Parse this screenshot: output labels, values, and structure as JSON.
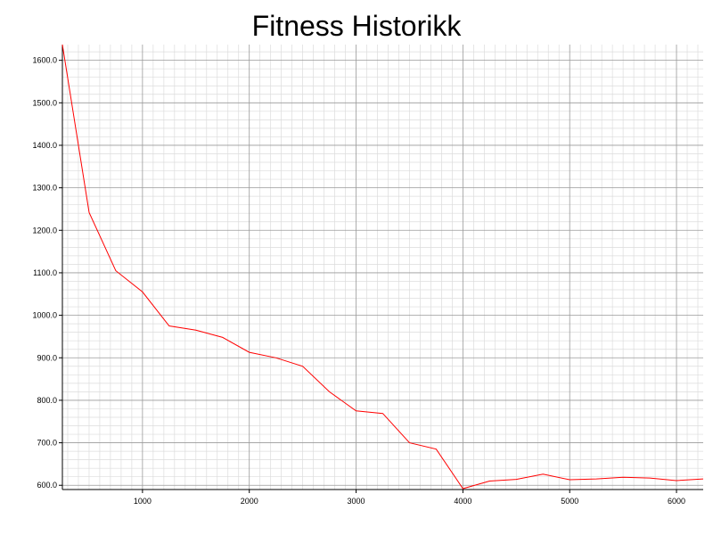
{
  "chart_data": {
    "type": "line",
    "title": "Fitness Historikk",
    "xlabel": "",
    "ylabel": "",
    "xlim": [
      250,
      6250
    ],
    "ylim": [
      590,
      1637
    ],
    "grid": true,
    "x_ticks": [
      1000,
      2000,
      3000,
      4000,
      5000,
      6000
    ],
    "x_tick_labels": [
      "1000",
      "2000",
      "3000",
      "4000",
      "5000",
      "6000"
    ],
    "y_ticks": [
      600,
      700,
      800,
      900,
      1000,
      1100,
      1200,
      1300,
      1400,
      1500,
      1600
    ],
    "y_tick_labels": [
      "600.0",
      "700.0",
      "800.0",
      "900.0",
      "1000.0",
      "1100.0",
      "1200.0",
      "1300.0",
      "1400.0",
      "1500.0",
      "1600.0"
    ],
    "series": [
      {
        "color": "#ff0000",
        "x": [
          250,
          500,
          750,
          1000,
          1250,
          1500,
          1750,
          2000,
          2250,
          2500,
          2750,
          3000,
          3250,
          3500,
          3750,
          4000,
          4250,
          4500,
          4750,
          5000,
          5250,
          5500,
          5750,
          6000,
          6250
        ],
        "y": [
          1637,
          1242,
          1105,
          1055,
          975,
          965,
          948,
          913,
          900,
          880,
          820,
          775,
          769,
          700,
          685,
          592,
          610,
          614,
          626,
          613,
          615,
          619,
          617,
          611,
          615
        ]
      }
    ]
  }
}
